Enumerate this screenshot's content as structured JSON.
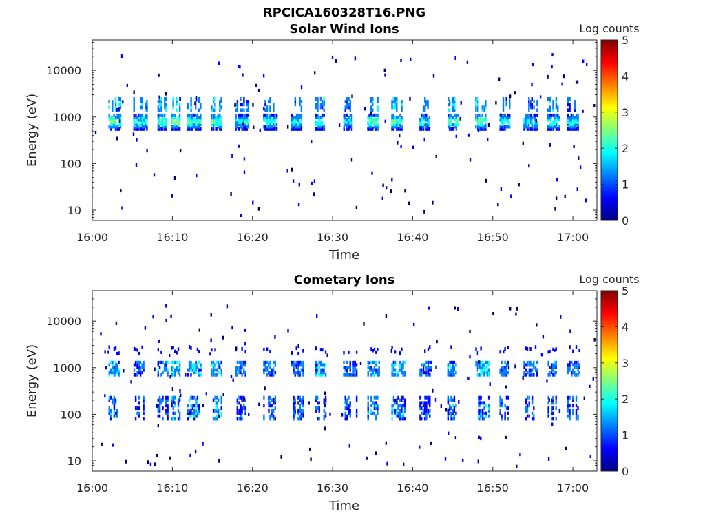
{
  "figure_title": "RPCICA160328T16.PNG",
  "colormap": [
    "#00007f",
    "#0000ff",
    "#007fff",
    "#00ffff",
    "#7fff7f",
    "#ffff00",
    "#ff7f00",
    "#ff0000",
    "#7f0000"
  ],
  "chart_data": [
    {
      "type": "heatmap",
      "title": "Solar Wind Ions",
      "xlabel": "Time",
      "ylabel": "Energy (eV)",
      "y_scale": "log",
      "ylim": [
        6,
        45000
      ],
      "xlim": [
        "16:00",
        "17:03"
      ],
      "x_ticks": [
        "16:00",
        "16:10",
        "16:20",
        "16:30",
        "16:40",
        "16:50",
        "17:00"
      ],
      "y_ticks": [
        10,
        100,
        1000,
        10000
      ],
      "y_tick_labels": [
        "10",
        "100",
        "1000",
        "10000"
      ],
      "colorbar": {
        "label": "Log counts",
        "range": [
          0,
          5
        ],
        "ticks": [
          "0",
          "1",
          "2",
          "3",
          "4",
          "5"
        ]
      },
      "bursts": [
        {
          "time": "16:02.7",
          "max_log_counts": 2.8
        },
        {
          "time": "16:05.8",
          "max_log_counts": 2.4
        },
        {
          "time": "16:08.8",
          "max_log_counts": 2.7
        },
        {
          "time": "16:10.5",
          "max_log_counts": 2.9
        },
        {
          "time": "16:12.5",
          "max_log_counts": 2.6
        },
        {
          "time": "16:15.5",
          "max_log_counts": 2.6
        },
        {
          "time": "16:18.5",
          "max_log_counts": 2.2
        },
        {
          "time": "16:22.0",
          "max_log_counts": 2.4
        },
        {
          "time": "16:25.5",
          "max_log_counts": 2.3
        },
        {
          "time": "16:28.5",
          "max_log_counts": 2.5
        },
        {
          "time": "16:32.0",
          "max_log_counts": 2.2
        },
        {
          "time": "16:35.0",
          "max_log_counts": 2.8
        },
        {
          "time": "16:38.0",
          "max_log_counts": 2.6
        },
        {
          "time": "16:41.5",
          "max_log_counts": 2.3
        },
        {
          "time": "16:45.0",
          "max_log_counts": 2.7
        },
        {
          "time": "16:48.5",
          "max_log_counts": 2.8
        },
        {
          "time": "16:51.5",
          "max_log_counts": 2.3
        },
        {
          "time": "16:54.5",
          "max_log_counts": 2.2
        },
        {
          "time": "16:57.5",
          "max_log_counts": 2.5
        },
        {
          "time": "17:00.0",
          "max_log_counts": 2.2
        }
      ]
    },
    {
      "type": "heatmap",
      "title": "Cometary Ions",
      "xlabel": "Time",
      "ylabel": "Energy (eV)",
      "y_scale": "log",
      "ylim": [
        6,
        45000
      ],
      "xlim": [
        "16:00",
        "17:03"
      ],
      "x_ticks": [
        "16:00",
        "16:10",
        "16:20",
        "16:30",
        "16:40",
        "16:50",
        "17:00"
      ],
      "y_ticks": [
        10,
        100,
        1000,
        10000
      ],
      "y_tick_labels": [
        "10",
        "100",
        "1000",
        "10000"
      ],
      "colorbar": {
        "label": "Log counts",
        "range": [
          0,
          5
        ],
        "ticks": [
          "0",
          "1",
          "2",
          "3",
          "4",
          "5"
        ]
      },
      "bursts": [
        {
          "time": "16:02.7",
          "max_log_counts": 1.8
        },
        {
          "time": "16:05.8",
          "max_log_counts": 1.2
        },
        {
          "time": "16:08.8",
          "max_log_counts": 1.6
        },
        {
          "time": "16:10.5",
          "max_log_counts": 1.9
        },
        {
          "time": "16:12.5",
          "max_log_counts": 1.7
        },
        {
          "time": "16:15.5",
          "max_log_counts": 1.8
        },
        {
          "time": "16:18.5",
          "max_log_counts": 1.4
        },
        {
          "time": "16:22.0",
          "max_log_counts": 1.5
        },
        {
          "time": "16:25.5",
          "max_log_counts": 1.4
        },
        {
          "time": "16:28.5",
          "max_log_counts": 1.6
        },
        {
          "time": "16:32.0",
          "max_log_counts": 1.3
        },
        {
          "time": "16:35.0",
          "max_log_counts": 1.7
        },
        {
          "time": "16:38.0",
          "max_log_counts": 1.7
        },
        {
          "time": "16:41.5",
          "max_log_counts": 1.3
        },
        {
          "time": "16:45.0",
          "max_log_counts": 1.6
        },
        {
          "time": "16:48.5",
          "max_log_counts": 1.9
        },
        {
          "time": "16:51.5",
          "max_log_counts": 1.4
        },
        {
          "time": "16:54.5",
          "max_log_counts": 1.3
        },
        {
          "time": "16:57.5",
          "max_log_counts": 1.5
        },
        {
          "time": "17:00.0",
          "max_log_counts": 1.4
        }
      ]
    }
  ]
}
